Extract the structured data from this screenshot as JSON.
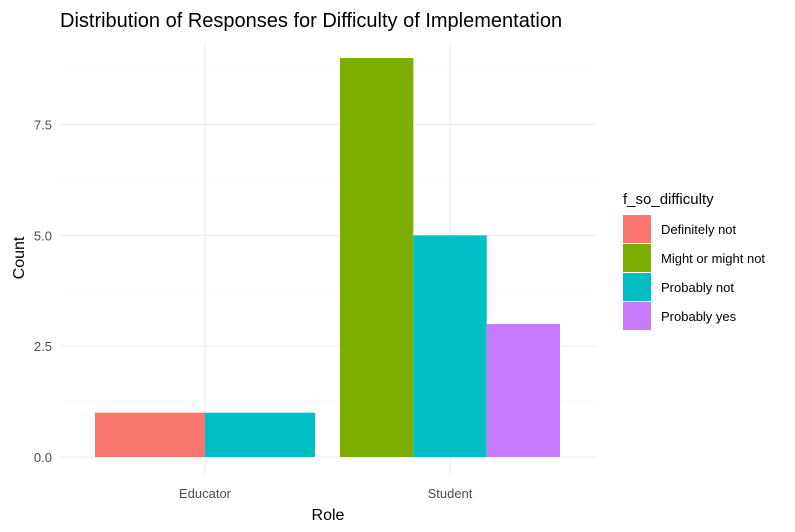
{
  "chart_data": {
    "type": "bar",
    "title": "Distribution of Responses for Difficulty of Implementation",
    "xlabel": "Role",
    "ylabel": "Count",
    "categories": [
      "Educator",
      "Student"
    ],
    "legend_title": "f_so_difficulty",
    "legend_position": "right",
    "grid": true,
    "ylim": [
      0,
      9
    ],
    "yticks": [
      0,
      2.5,
      5,
      7.5
    ],
    "ytick_labels": [
      "0.0",
      "2.5",
      "5.0",
      "7.5"
    ],
    "series": [
      {
        "name": "Definitely not",
        "color": "#F8766D",
        "values": [
          1,
          null
        ]
      },
      {
        "name": "Might or might not",
        "color": "#7CAE00",
        "values": [
          null,
          9
        ]
      },
      {
        "name": "Probably not",
        "color": "#00BFC4",
        "values": [
          1,
          5
        ]
      },
      {
        "name": "Probably yes",
        "color": "#C77CFF",
        "values": [
          null,
          3
        ]
      }
    ]
  }
}
